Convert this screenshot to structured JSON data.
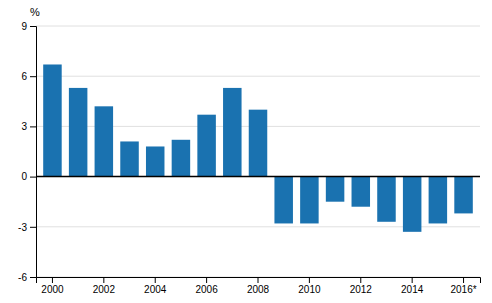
{
  "chart_data": {
    "type": "bar",
    "ylabel": "%",
    "categories": [
      "2000",
      null,
      "2002",
      null,
      "2004",
      null,
      "2006",
      null,
      "2008",
      null,
      "2010",
      null,
      "2012",
      null,
      "2014",
      null,
      "2016*"
    ],
    "values": [
      6.7,
      5.3,
      4.2,
      2.1,
      1.8,
      2.2,
      3.7,
      5.3,
      4.0,
      -2.8,
      -2.8,
      -1.5,
      -1.8,
      -2.7,
      -3.3,
      -2.8,
      -2.2
    ],
    "color": "#1a72b0",
    "ylim": [
      -6,
      9
    ],
    "yticks": [
      -6,
      -3,
      0,
      3,
      6,
      9
    ],
    "grid": true
  }
}
